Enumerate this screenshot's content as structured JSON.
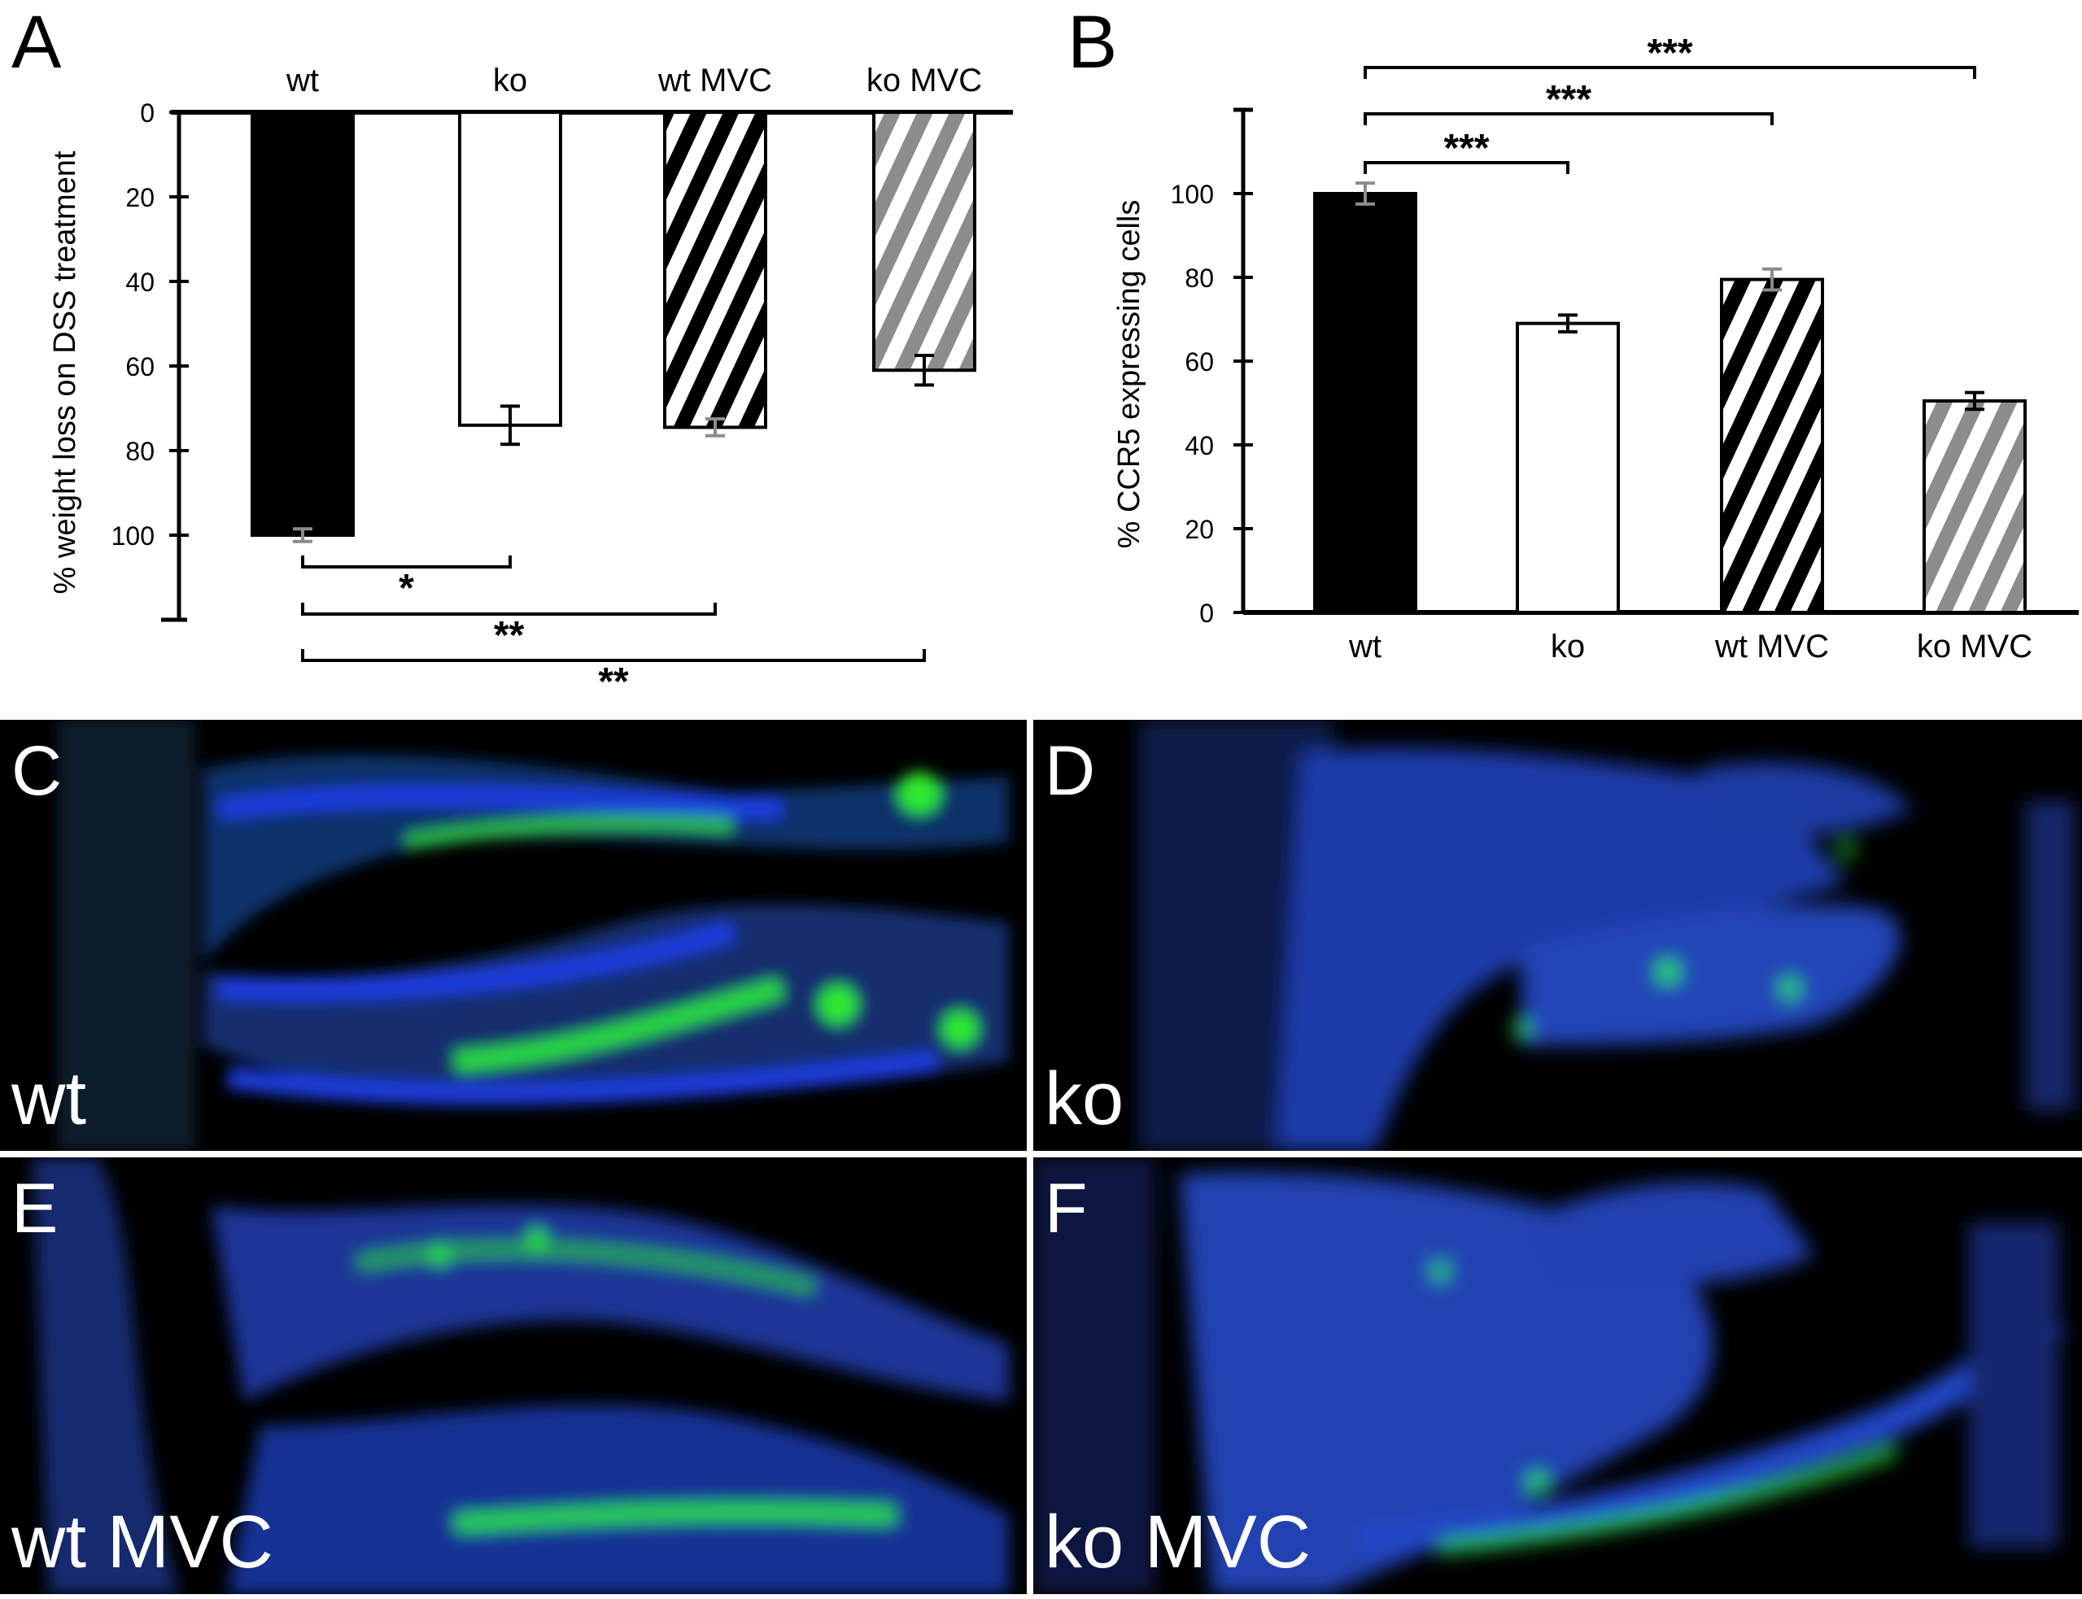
{
  "panels": {
    "A": "A",
    "B": "B",
    "C": "C",
    "D": "D",
    "E": "E",
    "F": "F"
  },
  "micrographs": {
    "C": "wt",
    "D": "ko",
    "E": "wt MVC",
    "F": "ko MVC"
  },
  "colors": {
    "background": "#000000",
    "nuclei_stain": "#1b2fd6",
    "ccr5_stain": "#2ee82e",
    "bar_solid": "#000000",
    "bar_gray_hatch": "#8c8c8c",
    "error_gray": "#8c8c8c"
  },
  "chart_data": [
    {
      "type": "bar",
      "orientation": "downward",
      "categories": [
        "wt",
        "ko",
        "wt MVC",
        "ko MVC"
      ],
      "bar_styles": [
        "solid-black",
        "white",
        "black-hatch",
        "gray-hatch"
      ],
      "values": [
        100,
        74,
        74.5,
        61
      ],
      "errors": [
        1.5,
        4.5,
        2,
        3.5
      ],
      "ylabel": "% weight loss on DSS treatment",
      "ylim": [
        0,
        120
      ],
      "yticks": [
        0,
        20,
        40,
        60,
        80,
        100
      ],
      "grid": false,
      "significance": [
        {
          "from": "wt",
          "to": "ko",
          "label": "*"
        },
        {
          "from": "wt",
          "to": "wt MVC",
          "label": "**"
        },
        {
          "from": "wt",
          "to": "ko MVC",
          "label": "**"
        }
      ]
    },
    {
      "type": "bar",
      "categories": [
        "wt",
        "ko",
        "wt MVC",
        "ko MVC"
      ],
      "bar_styles": [
        "solid-black",
        "white",
        "black-hatch",
        "gray-hatch"
      ],
      "values": [
        100,
        69,
        79.5,
        50.5
      ],
      "errors": [
        2.5,
        2,
        2.5,
        2
      ],
      "ylabel": "% CCR5 expressing cells",
      "ylim": [
        0,
        120
      ],
      "yticks": [
        0,
        20,
        40,
        60,
        80,
        100
      ],
      "grid": false,
      "significance": [
        {
          "from": "wt",
          "to": "ko",
          "label": "***"
        },
        {
          "from": "wt",
          "to": "wt MVC",
          "label": "***"
        },
        {
          "from": "wt",
          "to": "ko MVC",
          "label": "***"
        }
      ]
    }
  ]
}
